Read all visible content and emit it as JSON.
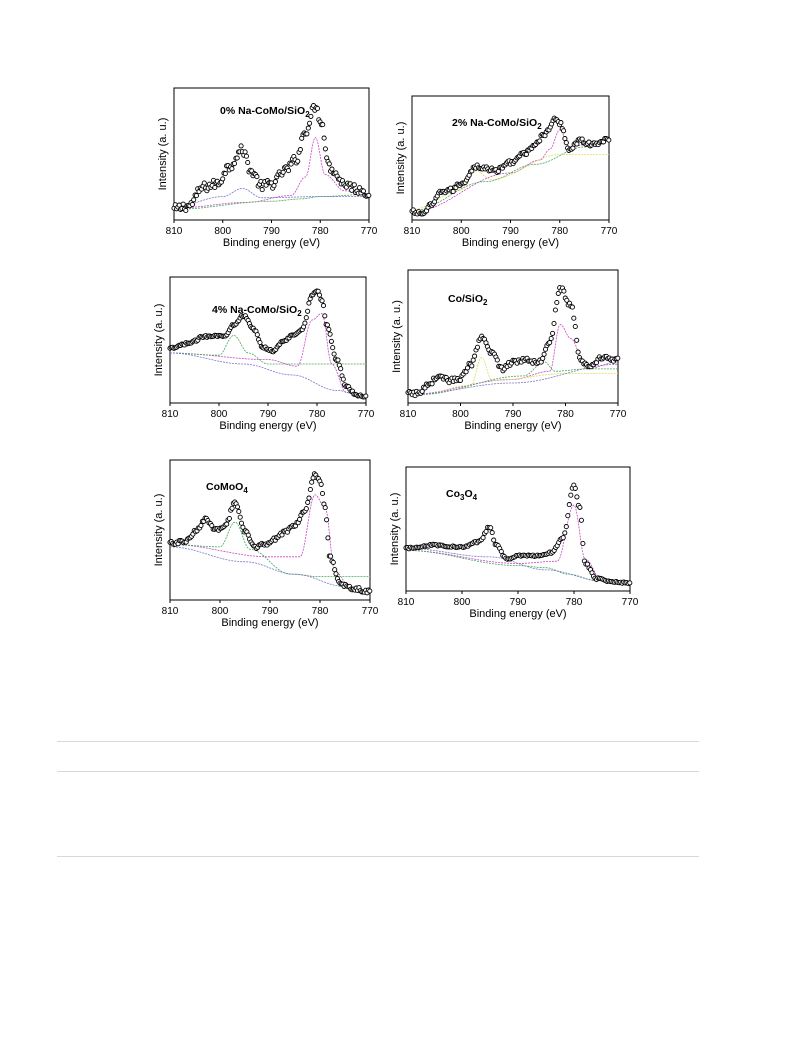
{
  "chart_data": [
    {
      "type": "scatter",
      "title": "0% Na-CoMo/SiO",
      "title_sub": "2",
      "xlabel": "Binding energy (eV)",
      "ylabel": "Intensity (a. u.)",
      "xlim": [
        810,
        770
      ],
      "xticks": [
        810,
        800,
        790,
        780,
        770
      ],
      "ylim": [
        0,
        1
      ],
      "anchors": [
        [
          810,
          0.04
        ],
        [
          807,
          0.07
        ],
        [
          804,
          0.23
        ],
        [
          801,
          0.26
        ],
        [
          799,
          0.4
        ],
        [
          796,
          0.55
        ],
        [
          794,
          0.36
        ],
        [
          792,
          0.24
        ],
        [
          790,
          0.26
        ],
        [
          787,
          0.38
        ],
        [
          785,
          0.47
        ],
        [
          783,
          0.72
        ],
        [
          781,
          0.93
        ],
        [
          780,
          0.82
        ],
        [
          778,
          0.4
        ],
        [
          775,
          0.26
        ],
        [
          772,
          0.21
        ],
        [
          770,
          0.18
        ]
      ],
      "noise": 0.04,
      "fits": [
        {
          "color": "#cc44cc",
          "points": [
            [
              810,
              0.05
            ],
            [
              795,
              0.1
            ],
            [
              786,
              0.16
            ],
            [
              783,
              0.32
            ],
            [
              781,
              0.66
            ],
            [
              779,
              0.34
            ],
            [
              775,
              0.2
            ],
            [
              770,
              0.17
            ]
          ]
        },
        {
          "color": "#44aa55",
          "points": [
            [
              810,
              0.04
            ],
            [
              790,
              0.11
            ],
            [
              784,
              0.13
            ],
            [
              780,
              0.15
            ],
            [
              770,
              0.17
            ]
          ]
        },
        {
          "color": "#7777cc",
          "points": [
            [
              810,
              0.06
            ],
            [
              800,
              0.15
            ],
            [
              796,
              0.22
            ],
            [
              792,
              0.14
            ],
            [
              780,
              0.15
            ]
          ]
        }
      ]
    },
    {
      "type": "scatter",
      "title": "2% Na-CoMo/SiO",
      "title_sub": "2",
      "xlabel": "Binding energy (eV)",
      "ylabel": "Intensity (a. u.)",
      "xlim": [
        810,
        770
      ],
      "xticks": [
        810,
        800,
        790,
        780,
        770
      ],
      "ylim": [
        0,
        1
      ],
      "anchors": [
        [
          810,
          0.02
        ],
        [
          808,
          0.0
        ],
        [
          806,
          0.08
        ],
        [
          804,
          0.21
        ],
        [
          802,
          0.22
        ],
        [
          800,
          0.28
        ],
        [
          797,
          0.44
        ],
        [
          795,
          0.42
        ],
        [
          793,
          0.4
        ],
        [
          790,
          0.48
        ],
        [
          787,
          0.56
        ],
        [
          785,
          0.65
        ],
        [
          783,
          0.74
        ],
        [
          781,
          0.87
        ],
        [
          780,
          0.84
        ],
        [
          778,
          0.6
        ],
        [
          776,
          0.68
        ],
        [
          773,
          0.64
        ],
        [
          770,
          0.7
        ]
      ],
      "noise": 0.02,
      "fits": [
        {
          "color": "#cc44cc",
          "points": [
            [
              810,
              0.02
            ],
            [
              790,
              0.38
            ],
            [
              784,
              0.5
            ],
            [
              782,
              0.6
            ],
            [
              780,
              0.78
            ],
            [
              778,
              0.62
            ],
            [
              775,
              0.64
            ],
            [
              770,
              0.68
            ]
          ]
        },
        {
          "color": "#44aa55",
          "points": [
            [
              810,
              0.03
            ],
            [
              795,
              0.3
            ],
            [
              785,
              0.46
            ],
            [
              775,
              0.62
            ],
            [
              770,
              0.68
            ]
          ]
        },
        {
          "color": "#dddd55",
          "points": [
            [
              810,
              0.04
            ],
            [
              800,
              0.22
            ],
            [
              797,
              0.4
            ],
            [
              794,
              0.32
            ],
            [
              780,
              0.55
            ]
          ]
        }
      ]
    },
    {
      "type": "scatter",
      "title": "4% Na-CoMo/SiO",
      "title_sub": "2",
      "xlabel": "Binding energy (eV)",
      "ylabel": "Intensity (a. u.)",
      "xlim": [
        810,
        770
      ],
      "xticks": [
        810,
        800,
        790,
        780,
        770
      ],
      "ylim": [
        0,
        1
      ],
      "anchors": [
        [
          810,
          0.44
        ],
        [
          806,
          0.49
        ],
        [
          803,
          0.55
        ],
        [
          801,
          0.56
        ],
        [
          799,
          0.55
        ],
        [
          797,
          0.66
        ],
        [
          795,
          0.74
        ],
        [
          793,
          0.62
        ],
        [
          791,
          0.45
        ],
        [
          789,
          0.42
        ],
        [
          787,
          0.5
        ],
        [
          785,
          0.56
        ],
        [
          783,
          0.62
        ],
        [
          781,
          0.92
        ],
        [
          780,
          0.97
        ],
        [
          779,
          0.88
        ],
        [
          778,
          0.65
        ],
        [
          776,
          0.34
        ],
        [
          774,
          0.1
        ],
        [
          772,
          0.02
        ],
        [
          770,
          0.0
        ]
      ],
      "noise": 0.01,
      "fits": [
        {
          "color": "#cc44cc",
          "points": [
            [
              810,
              0.4
            ],
            [
              790,
              0.34
            ],
            [
              784,
              0.28
            ],
            [
              781,
              0.7
            ],
            [
              779,
              0.76
            ],
            [
              777,
              0.3
            ],
            [
              774,
              0.04
            ],
            [
              770,
              0.0
            ]
          ]
        },
        {
          "color": "#44aa55",
          "points": [
            [
              810,
              0.4
            ],
            [
              800,
              0.38
            ],
            [
              797,
              0.56
            ],
            [
              794,
              0.4
            ],
            [
              790,
              0.3
            ]
          ]
        },
        {
          "color": "#7777cc",
          "points": [
            [
              810,
              0.4
            ],
            [
              795,
              0.3
            ],
            [
              785,
              0.2
            ],
            [
              776,
              0.06
            ],
            [
              770,
              0.0
            ]
          ]
        }
      ]
    },
    {
      "type": "scatter",
      "title": "Co/SiO",
      "title_sub": "2",
      "xlabel": "Binding energy (eV)",
      "ylabel": "Intensity (a. u.)",
      "xlim": [
        810,
        770
      ],
      "xticks": [
        810,
        800,
        790,
        780,
        770
      ],
      "ylim": [
        0,
        1
      ],
      "anchors": [
        [
          808,
          0.03
        ],
        [
          806,
          0.12
        ],
        [
          804,
          0.18
        ],
        [
          802,
          0.14
        ],
        [
          800,
          0.16
        ],
        [
          798,
          0.28
        ],
        [
          796,
          0.5
        ],
        [
          794,
          0.38
        ],
        [
          792,
          0.24
        ],
        [
          790,
          0.3
        ],
        [
          788,
          0.32
        ],
        [
          785,
          0.3
        ],
        [
          783,
          0.48
        ],
        [
          781,
          0.93
        ],
        [
          779,
          0.78
        ],
        [
          777,
          0.3
        ],
        [
          775,
          0.26
        ],
        [
          773,
          0.34
        ],
        [
          770,
          0.32
        ]
      ],
      "noise": 0.02,
      "fits": [
        {
          "color": "#cc44cc",
          "points": [
            [
              810,
              0.02
            ],
            [
              790,
              0.15
            ],
            [
              783,
              0.22
            ],
            [
              781,
              0.62
            ],
            [
              779,
              0.5
            ],
            [
              776,
              0.24
            ],
            [
              770,
              0.3
            ]
          ]
        },
        {
          "color": "#dddd55",
          "points": [
            [
              808,
              0.02
            ],
            [
              798,
              0.1
            ],
            [
              796,
              0.34
            ],
            [
              794,
              0.14
            ],
            [
              780,
              0.2
            ]
          ]
        },
        {
          "color": "#44aa55",
          "points": [
            [
              808,
              0.02
            ],
            [
              788,
              0.18
            ],
            [
              784,
              0.3
            ],
            [
              782,
              0.22
            ],
            [
              776,
              0.24
            ]
          ]
        },
        {
          "color": "#7777cc",
          "points": [
            [
              810,
              0.02
            ],
            [
              790,
              0.12
            ],
            [
              770,
              0.28
            ]
          ]
        }
      ]
    },
    {
      "type": "scatter",
      "title": "CoMoO",
      "title_sub": "4",
      "xlabel": "Binding energy (eV)",
      "ylabel": "Intensity (a. u.)",
      "xlim": [
        810,
        770
      ],
      "xticks": [
        810,
        800,
        790,
        780,
        770
      ],
      "ylim": [
        0,
        1
      ],
      "anchors": [
        [
          810,
          0.41
        ],
        [
          807,
          0.42
        ],
        [
          805,
          0.5
        ],
        [
          803,
          0.6
        ],
        [
          801,
          0.52
        ],
        [
          799,
          0.55
        ],
        [
          797,
          0.73
        ],
        [
          795,
          0.5
        ],
        [
          793,
          0.38
        ],
        [
          791,
          0.4
        ],
        [
          789,
          0.44
        ],
        [
          787,
          0.5
        ],
        [
          785,
          0.56
        ],
        [
          783,
          0.68
        ],
        [
          781,
          0.97
        ],
        [
          780,
          0.92
        ],
        [
          779,
          0.7
        ],
        [
          778,
          0.3
        ],
        [
          776,
          0.08
        ],
        [
          773,
          0.04
        ],
        [
          770,
          0.02
        ]
      ],
      "noise": 0.015,
      "fits": [
        {
          "color": "#cc44cc",
          "points": [
            [
              810,
              0.4
            ],
            [
              790,
              0.3
            ],
            [
              784,
              0.3
            ],
            [
              781,
              0.8
            ],
            [
              779,
              0.7
            ],
            [
              777,
              0.18
            ],
            [
              774,
              0.06
            ],
            [
              770,
              0.02
            ]
          ]
        },
        {
          "color": "#44aa55",
          "points": [
            [
              810,
              0.4
            ],
            [
              800,
              0.38
            ],
            [
              797,
              0.58
            ],
            [
              794,
              0.36
            ],
            [
              786,
              0.16
            ],
            [
              780,
              0.14
            ]
          ]
        },
        {
          "color": "#7777cc",
          "points": [
            [
              810,
              0.38
            ],
            [
              795,
              0.26
            ],
            [
              785,
              0.16
            ],
            [
              775,
              0.06
            ],
            [
              770,
              0.02
            ]
          ]
        }
      ]
    },
    {
      "type": "scatter",
      "title": "Co",
      "title_sub": "3",
      "title_mid": "O",
      "title_sub2": "4",
      "xlabel": "Binding energy (eV)",
      "ylabel": "Intensity (a. u.)",
      "xlim": [
        810,
        770
      ],
      "xticks": [
        810,
        800,
        790,
        780,
        770
      ],
      "ylim": [
        0,
        1
      ],
      "anchors": [
        [
          810,
          0.34
        ],
        [
          805,
          0.37
        ],
        [
          800,
          0.35
        ],
        [
          797,
          0.4
        ],
        [
          795,
          0.54
        ],
        [
          794,
          0.38
        ],
        [
          792,
          0.24
        ],
        [
          790,
          0.27
        ],
        [
          786,
          0.27
        ],
        [
          784,
          0.3
        ],
        [
          782,
          0.44
        ],
        [
          780,
          0.93
        ],
        [
          779,
          0.72
        ],
        [
          778,
          0.2
        ],
        [
          776,
          0.06
        ],
        [
          773,
          0.03
        ],
        [
          770,
          0.02
        ]
      ],
      "noise": 0.008,
      "fits": [
        {
          "color": "#cc44cc",
          "points": [
            [
              810,
              0.32
            ],
            [
              790,
              0.2
            ],
            [
              783,
              0.22
            ],
            [
              780,
              0.74
            ],
            [
              778,
              0.24
            ],
            [
              775,
              0.04
            ],
            [
              770,
              0.02
            ]
          ]
        },
        {
          "color": "#44aa55",
          "points": [
            [
              810,
              0.32
            ],
            [
              790,
              0.18
            ],
            [
              785,
              0.16
            ],
            [
              781,
              0.1
            ],
            [
              776,
              0.04
            ],
            [
              770,
              0.02
            ]
          ]
        },
        {
          "color": "#7777cc",
          "points": [
            [
              810,
              0.34
            ],
            [
              795,
              0.26
            ],
            [
              785,
              0.14
            ],
            [
              775,
              0.04
            ],
            [
              770,
              0.02
            ]
          ]
        }
      ]
    }
  ]
}
